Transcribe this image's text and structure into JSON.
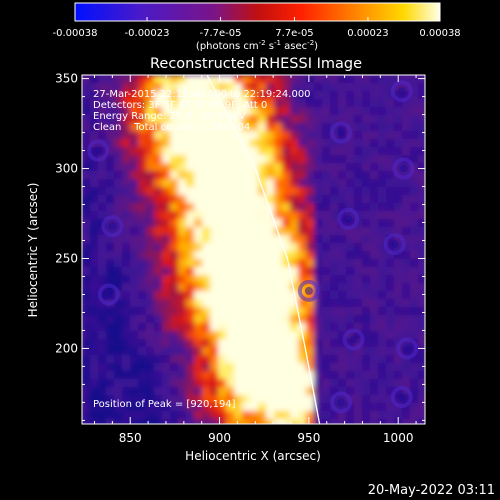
{
  "colorbar": {
    "tick_labels": [
      "-0.00038",
      "-0.00023",
      "-7.7e-05",
      "7.7e-05",
      "0.00023",
      "0.00038"
    ],
    "tick_values": [
      -0.00038,
      -0.00023,
      -7.7e-05,
      7.7e-05,
      0.00023,
      0.00038
    ],
    "range": [
      -0.00038,
      0.00038
    ],
    "colormap": "blue-purple-red-orange-yellow-white",
    "units": {
      "prefix": "(photons cm",
      "e1": "-2",
      "s": " s",
      "e2": "-1",
      "asec": " asec",
      "e3": "-2",
      "suffix": ")"
    }
  },
  "chart_data": {
    "type": "heatmap",
    "title": "Reconstructed RHESSI Image",
    "xlabel": "Heliocentric X (arcsec)",
    "ylabel": "Heliocentric Y (arcsec)",
    "xlim": [
      823,
      1015
    ],
    "ylim": [
      158,
      352
    ],
    "xticks": [
      850,
      900,
      950,
      1000
    ],
    "yticks": [
      200,
      250,
      300,
      350
    ],
    "annotations": [
      "27-Mar-2015 22:13:40.000 to 22:19:24.000",
      "Detectors: 3F 5F 6F 7F 8F 9F, Att 0",
      "Energy Range: 25.0 - 50.0 keV",
      "Clean    Total counts: 1.26E+04"
    ],
    "peak_label": "Position of Peak = [920,194]",
    "peak": [
      920,
      194
    ],
    "limb": [
      [
        893,
        352
      ],
      [
        920,
        300
      ],
      [
        938,
        250
      ],
      [
        948,
        200
      ],
      [
        956,
        158
      ]
    ],
    "grid": false
  },
  "footer": {
    "timestamp": "20-May-2022 03:11"
  }
}
